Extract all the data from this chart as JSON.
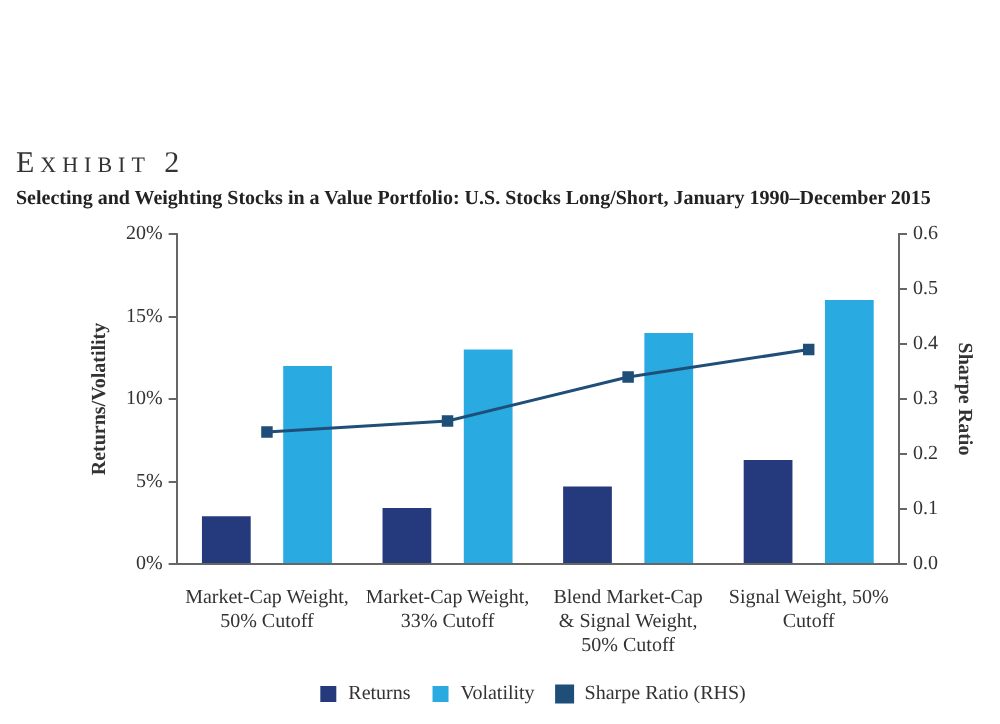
{
  "chart_data": {
    "type": "bar",
    "title": "Exhibit 2",
    "subtitle": "Selecting and Weighting Stocks in a Value Portfolio: U.S. Stocks Long/Short, January 1990–December 2015",
    "ylabel": "Returns/Volatility",
    "y2label": "Sharpe Ratio",
    "categories": [
      "Market-Cap Weight, 50% Cutoff",
      "Market-Cap Weight, 33% Cutoff",
      "Blend Market-Cap & Signal Weight, 50% Cutoff",
      "Signal Weight, 50% Cutoff"
    ],
    "series": [
      {
        "name": "Returns",
        "color": "#243a7c",
        "values": [
          2.9,
          3.4,
          4.7,
          6.3
        ]
      },
      {
        "name": "Volatility",
        "color": "#29abe2",
        "values": [
          12,
          13,
          14,
          16
        ]
      },
      {
        "name": "Sharpe Ratio (RHS)",
        "type": "line",
        "axis": "y2",
        "color": "#1f4e79",
        "values": [
          0.24,
          0.26,
          0.34,
          0.39
        ]
      }
    ],
    "ylim": [
      0,
      20
    ],
    "yticks": [
      {
        "value": 0,
        "label": "0%"
      },
      {
        "value": 5,
        "label": "5%"
      },
      {
        "value": 10,
        "label": "10%"
      },
      {
        "value": 15,
        "label": "15%"
      },
      {
        "value": 20,
        "label": "20%"
      }
    ],
    "y2lim": [
      0,
      0.6
    ],
    "y2ticks": [
      {
        "value": 0,
        "label": "0.0"
      },
      0.1,
      0.2,
      0.3,
      0.4,
      0.5,
      0.6
    ],
    "grid": false,
    "legend": "bottom",
    "marker": "square",
    "line_style": "solid"
  }
}
